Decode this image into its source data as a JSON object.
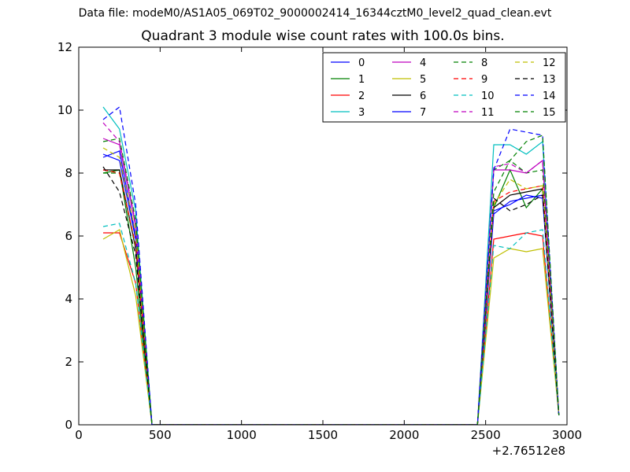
{
  "suptitle": "Data file: modeM0/AS1A05_069T02_9000002414_16344cztM0_level2_quad_clean.evt",
  "chart_data": {
    "type": "line",
    "title": "Quadrant 3 module wise count rates with 100.0s bins.",
    "xlabel": "",
    "ylabel": "",
    "x_offset_label": "+2.76512e8",
    "xlim": [
      0,
      3000
    ],
    "ylim": [
      0,
      12
    ],
    "xticks": [
      0,
      500,
      1000,
      1500,
      2000,
      2500,
      3000
    ],
    "yticks": [
      0,
      2,
      4,
      6,
      8,
      10,
      12
    ],
    "grid": false,
    "legend_position": "top-right",
    "legend_columns": 4,
    "x": [
      150,
      250,
      350,
      450,
      550,
      650,
      750,
      850,
      950,
      1050,
      1150,
      1250,
      1350,
      1450,
      1550,
      1650,
      1750,
      1850,
      1950,
      2050,
      2150,
      2250,
      2350,
      2450,
      2550,
      2650,
      2750,
      2850,
      2950
    ],
    "series": [
      {
        "name": "0",
        "color": "#0000ff",
        "dash": "solid",
        "values": [
          8.5,
          8.7,
          6.0,
          0,
          0,
          0,
          0,
          0,
          0,
          0,
          0,
          0,
          0,
          0,
          0,
          0,
          0,
          0,
          0,
          0,
          0,
          0,
          0,
          0,
          6.7,
          7.1,
          7.2,
          7.3,
          0.3
        ]
      },
      {
        "name": "1",
        "color": "#008000",
        "dash": "solid",
        "values": [
          8.0,
          8.1,
          5.0,
          0,
          0,
          0,
          0,
          0,
          0,
          0,
          0,
          0,
          0,
          0,
          0,
          0,
          0,
          0,
          0,
          0,
          0,
          0,
          0,
          0,
          6.9,
          8.1,
          6.9,
          7.5,
          0.3
        ]
      },
      {
        "name": "2",
        "color": "#ff0000",
        "dash": "solid",
        "values": [
          6.1,
          6.1,
          4.5,
          0,
          0,
          0,
          0,
          0,
          0,
          0,
          0,
          0,
          0,
          0,
          0,
          0,
          0,
          0,
          0,
          0,
          0,
          0,
          0,
          0,
          5.9,
          6.0,
          6.1,
          6.0,
          0.3
        ]
      },
      {
        "name": "3",
        "color": "#00bfbf",
        "dash": "solid",
        "values": [
          10.1,
          9.4,
          6.8,
          0,
          0,
          0,
          0,
          0,
          0,
          0,
          0,
          0,
          0,
          0,
          0,
          0,
          0,
          0,
          0,
          0,
          0,
          0,
          0,
          0,
          8.9,
          8.9,
          8.6,
          9.0,
          0.3
        ]
      },
      {
        "name": "4",
        "color": "#bf00bf",
        "dash": "solid",
        "values": [
          9.1,
          8.9,
          6.3,
          0,
          0,
          0,
          0,
          0,
          0,
          0,
          0,
          0,
          0,
          0,
          0,
          0,
          0,
          0,
          0,
          0,
          0,
          0,
          0,
          0,
          8.1,
          8.1,
          8.0,
          8.4,
          0.3
        ]
      },
      {
        "name": "5",
        "color": "#bfbf00",
        "dash": "solid",
        "values": [
          5.9,
          6.2,
          4.1,
          0,
          0,
          0,
          0,
          0,
          0,
          0,
          0,
          0,
          0,
          0,
          0,
          0,
          0,
          0,
          0,
          0,
          0,
          0,
          0,
          0,
          5.3,
          5.6,
          5.5,
          5.6,
          0.3
        ]
      },
      {
        "name": "6",
        "color": "#000000",
        "dash": "solid",
        "values": [
          8.1,
          8.1,
          5.6,
          0,
          0,
          0,
          0,
          0,
          0,
          0,
          0,
          0,
          0,
          0,
          0,
          0,
          0,
          0,
          0,
          0,
          0,
          0,
          0,
          0,
          6.9,
          7.3,
          7.4,
          7.5,
          0.3
        ]
      },
      {
        "name": "7",
        "color": "#0000ff",
        "dash": "solid",
        "values": [
          8.6,
          8.4,
          5.9,
          0,
          0,
          0,
          0,
          0,
          0,
          0,
          0,
          0,
          0,
          0,
          0,
          0,
          0,
          0,
          0,
          0,
          0,
          0,
          0,
          0,
          6.8,
          7.0,
          7.3,
          7.2,
          0.3
        ]
      },
      {
        "name": "8",
        "color": "#008000",
        "dash": "dashed",
        "values": [
          8.0,
          8.0,
          5.6,
          0,
          0,
          0,
          0,
          0,
          0,
          0,
          0,
          0,
          0,
          0,
          0,
          0,
          0,
          0,
          0,
          0,
          0,
          0,
          0,
          0,
          8.1,
          8.4,
          8.0,
          8.1,
          0.3
        ]
      },
      {
        "name": "9",
        "color": "#ff0000",
        "dash": "dashed",
        "values": [
          8.1,
          8.0,
          5.7,
          0,
          0,
          0,
          0,
          0,
          0,
          0,
          0,
          0,
          0,
          0,
          0,
          0,
          0,
          0,
          0,
          0,
          0,
          0,
          0,
          0,
          7.1,
          7.4,
          7.5,
          7.6,
          0.3
        ]
      },
      {
        "name": "10",
        "color": "#00bfbf",
        "dash": "dashed",
        "values": [
          6.3,
          6.4,
          4.5,
          0,
          0,
          0,
          0,
          0,
          0,
          0,
          0,
          0,
          0,
          0,
          0,
          0,
          0,
          0,
          0,
          0,
          0,
          0,
          0,
          0,
          5.7,
          5.6,
          6.1,
          6.2,
          0.3
        ]
      },
      {
        "name": "11",
        "color": "#bf00bf",
        "dash": "dashed",
        "values": [
          9.6,
          9.0,
          6.4,
          0,
          0,
          0,
          0,
          0,
          0,
          0,
          0,
          0,
          0,
          0,
          0,
          0,
          0,
          0,
          0,
          0,
          0,
          0,
          0,
          0,
          8.2,
          8.3,
          8.0,
          8.4,
          0.3
        ]
      },
      {
        "name": "12",
        "color": "#bfbf00",
        "dash": "dashed",
        "values": [
          8.8,
          8.5,
          6.1,
          0,
          0,
          0,
          0,
          0,
          0,
          0,
          0,
          0,
          0,
          0,
          0,
          0,
          0,
          0,
          0,
          0,
          0,
          0,
          0,
          0,
          7.0,
          7.8,
          7.5,
          7.6,
          0.3
        ]
      },
      {
        "name": "13",
        "color": "#000000",
        "dash": "dashed",
        "values": [
          8.2,
          7.4,
          5.4,
          0,
          0,
          0,
          0,
          0,
          0,
          0,
          0,
          0,
          0,
          0,
          0,
          0,
          0,
          0,
          0,
          0,
          0,
          0,
          0,
          0,
          7.2,
          6.8,
          7.0,
          7.3,
          0.3
        ]
      },
      {
        "name": "14",
        "color": "#0000ff",
        "dash": "dashed",
        "values": [
          9.7,
          10.1,
          7.0,
          0,
          0,
          0,
          0,
          0,
          0,
          0,
          0,
          0,
          0,
          0,
          0,
          0,
          0,
          0,
          0,
          0,
          0,
          0,
          0,
          0,
          8.1,
          9.4,
          9.3,
          9.2,
          0.3
        ]
      },
      {
        "name": "15",
        "color": "#008000",
        "dash": "dashed",
        "values": [
          9.0,
          9.1,
          6.5,
          0,
          0,
          0,
          0,
          0,
          0,
          0,
          0,
          0,
          0,
          0,
          0,
          0,
          0,
          0,
          0,
          0,
          0,
          0,
          0,
          0,
          7.4,
          8.4,
          9.0,
          9.2,
          0.3
        ]
      }
    ]
  }
}
